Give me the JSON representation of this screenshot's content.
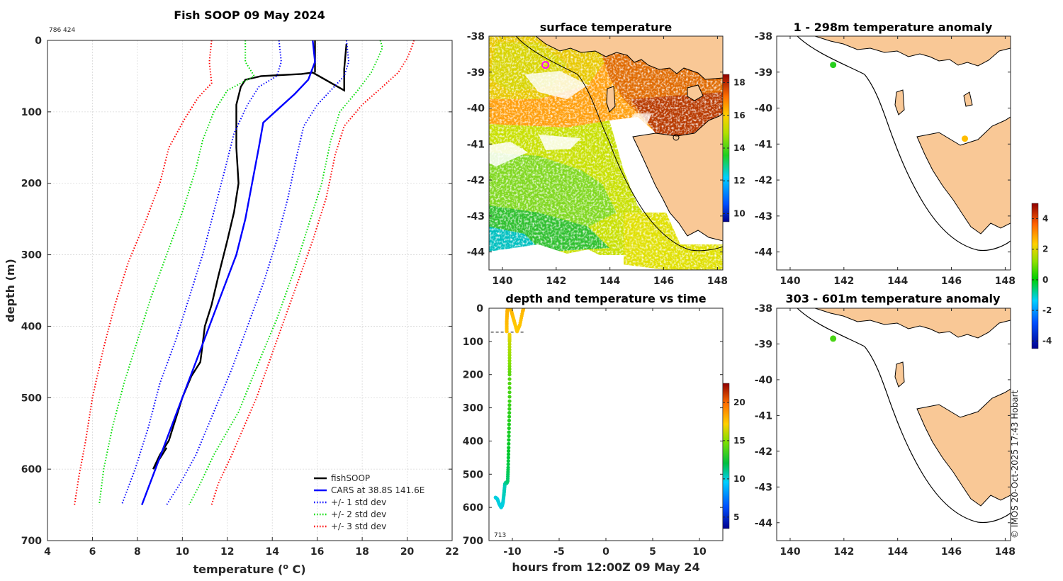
{
  "colors": {
    "land": "#f9c896",
    "coast": "#000000",
    "fish": "#000000",
    "cars": "#0000ff",
    "std1": "#0000ff",
    "std2": "#00dd00",
    "std3": "#ff0000"
  },
  "chart_data": [
    {
      "id": "profile",
      "type": "line",
      "title": "Fish SOOP 09 May 2024",
      "corner_note": "786 424",
      "xlabel": "temperature (",
      "xlabel_sup": "o",
      "xlabel_end": " C)",
      "ylabel": "depth (m)",
      "xlim": [
        4,
        22
      ],
      "ylim": [
        0,
        700
      ],
      "xticks": [
        4,
        6,
        8,
        10,
        12,
        14,
        16,
        18,
        20,
        22
      ],
      "yticks": [
        0,
        100,
        200,
        300,
        400,
        500,
        600,
        700
      ],
      "legend": [
        "fishSOOP",
        "CARS at 38.8S 141.6E",
        "+/- 1 std dev",
        "+/- 2 std dev",
        "+/- 3 std dev"
      ],
      "legend_position": "bottom-right",
      "series": [
        {
          "name": "fishSOOP",
          "color": "#000000",
          "style": "solid",
          "points": [
            [
              17.3,
              5
            ],
            [
              17.2,
              40
            ],
            [
              17.2,
              70
            ],
            [
              15.8,
              45
            ],
            [
              15.3,
              47
            ],
            [
              13.5,
              50
            ],
            [
              12.8,
              55
            ],
            [
              12.6,
              65
            ],
            [
              12.4,
              90
            ],
            [
              12.4,
              150
            ],
            [
              12.5,
              200
            ],
            [
              12.3,
              240
            ],
            [
              12.0,
              280
            ],
            [
              11.6,
              330
            ],
            [
              11.3,
              370
            ],
            [
              11.0,
              400
            ],
            [
              10.8,
              450
            ],
            [
              10.4,
              470
            ],
            [
              10.0,
              500
            ],
            [
              9.8,
              520
            ],
            [
              9.6,
              540
            ],
            [
              9.4,
              560
            ],
            [
              9.0,
              580
            ],
            [
              8.7,
              600
            ],
            [
              8.9,
              590
            ],
            [
              9.3,
              570
            ]
          ]
        },
        {
          "name": "fishSOOP shallow",
          "color": "#000000",
          "style": "solid",
          "points": [
            [
              15.9,
              0
            ],
            [
              15.9,
              30
            ],
            [
              15.9,
              45
            ]
          ]
        },
        {
          "name": "CARS at 38.8S 141.6E",
          "color": "#0000ff",
          "style": "solid",
          "points": [
            [
              15.8,
              0
            ],
            [
              15.9,
              30
            ],
            [
              15.6,
              55
            ],
            [
              15.0,
              75
            ],
            [
              14.3,
              95
            ],
            [
              13.6,
              115
            ],
            [
              13.4,
              150
            ],
            [
              13.1,
              200
            ],
            [
              12.8,
              250
            ],
            [
              12.4,
              300
            ],
            [
              11.8,
              350
            ],
            [
              11.2,
              400
            ],
            [
              10.6,
              450
            ],
            [
              10.0,
              500
            ],
            [
              9.4,
              550
            ],
            [
              8.8,
              600
            ],
            [
              8.2,
              650
            ]
          ]
        },
        {
          "name": "-1 std",
          "color": "#0000ff",
          "style": "dotted",
          "points": [
            [
              14.3,
              0
            ],
            [
              14.4,
              30
            ],
            [
              14.2,
              50
            ],
            [
              13.4,
              65
            ],
            [
              12.9,
              90
            ],
            [
              12.3,
              130
            ],
            [
              11.9,
              180
            ],
            [
              11.4,
              240
            ],
            [
              10.9,
              300
            ],
            [
              10.3,
              360
            ],
            [
              9.7,
              420
            ],
            [
              9.0,
              480
            ],
            [
              8.5,
              540
            ],
            [
              7.9,
              600
            ],
            [
              7.3,
              650
            ]
          ]
        },
        {
          "name": "+1 std",
          "color": "#0000ff",
          "style": "dotted",
          "points": [
            [
              17.3,
              0
            ],
            [
              17.4,
              30
            ],
            [
              17.2,
              50
            ],
            [
              16.6,
              70
            ],
            [
              16.0,
              90
            ],
            [
              15.4,
              120
            ],
            [
              15.1,
              160
            ],
            [
              14.7,
              220
            ],
            [
              14.2,
              280
            ],
            [
              13.6,
              340
            ],
            [
              12.9,
              400
            ],
            [
              12.2,
              460
            ],
            [
              11.4,
              520
            ],
            [
              10.6,
              580
            ],
            [
              9.9,
              620
            ],
            [
              9.3,
              650
            ]
          ]
        },
        {
          "name": "-2 std",
          "color": "#00dd00",
          "style": "dotted",
          "points": [
            [
              12.8,
              0
            ],
            [
              12.8,
              30
            ],
            [
              13.2,
              50
            ],
            [
              12.0,
              70
            ],
            [
              11.4,
              100
            ],
            [
              10.9,
              140
            ],
            [
              10.6,
              180
            ],
            [
              10.0,
              240
            ],
            [
              9.3,
              300
            ],
            [
              8.6,
              360
            ],
            [
              8.0,
              420
            ],
            [
              7.4,
              480
            ],
            [
              6.9,
              540
            ],
            [
              6.5,
              600
            ],
            [
              6.3,
              650
            ]
          ]
        },
        {
          "name": "+2 std",
          "color": "#00dd00",
          "style": "dotted",
          "points": [
            [
              18.8,
              0
            ],
            [
              18.9,
              10
            ],
            [
              18.7,
              25
            ],
            [
              18.4,
              45
            ],
            [
              17.8,
              70
            ],
            [
              17.0,
              100
            ],
            [
              16.6,
              140
            ],
            [
              16.2,
              200
            ],
            [
              15.6,
              260
            ],
            [
              15.0,
              320
            ],
            [
              14.2,
              390
            ],
            [
              13.4,
              450
            ],
            [
              12.5,
              520
            ],
            [
              11.4,
              580
            ],
            [
              10.8,
              620
            ],
            [
              10.3,
              650
            ]
          ]
        },
        {
          "name": "-3 std",
          "color": "#ff0000",
          "style": "dotted",
          "points": [
            [
              11.3,
              0
            ],
            [
              11.2,
              30
            ],
            [
              11.3,
              60
            ],
            [
              10.7,
              80
            ],
            [
              10.1,
              110
            ],
            [
              9.4,
              150
            ],
            [
              9.0,
              200
            ],
            [
              8.4,
              250
            ],
            [
              7.6,
              310
            ],
            [
              7.0,
              370
            ],
            [
              6.5,
              430
            ],
            [
              6.0,
              500
            ],
            [
              5.7,
              560
            ],
            [
              5.4,
              610
            ],
            [
              5.2,
              650
            ]
          ]
        },
        {
          "name": "+3 std",
          "color": "#ff0000",
          "style": "dotted",
          "points": [
            [
              20.3,
              0
            ],
            [
              20.2,
              10
            ],
            [
              20.0,
              25
            ],
            [
              19.6,
              45
            ],
            [
              18.9,
              65
            ],
            [
              18.0,
              90
            ],
            [
              17.2,
              120
            ],
            [
              16.8,
              160
            ],
            [
              16.4,
              220
            ],
            [
              15.8,
              280
            ],
            [
              15.0,
              350
            ],
            [
              14.2,
              420
            ],
            [
              13.3,
              500
            ],
            [
              12.2,
              580
            ],
            [
              11.6,
              620
            ],
            [
              11.3,
              650
            ]
          ]
        }
      ]
    },
    {
      "id": "surface",
      "type": "heatmap",
      "title": "surface temperature",
      "xlim": [
        139.5,
        148.2
      ],
      "ylim": [
        -44.5,
        -38
      ],
      "xticks": [
        140,
        142,
        144,
        146,
        148
      ],
      "yticks": [
        -38,
        -39,
        -40,
        -41,
        -42,
        -43,
        -44
      ],
      "colorbar_ticks": [
        10,
        12,
        14,
        16,
        18
      ],
      "colorbar_range": [
        9.5,
        18.5
      ],
      "station": {
        "lon": 141.6,
        "lat": -38.8,
        "color": "#ff00ff"
      }
    },
    {
      "id": "timeseries",
      "type": "scatter",
      "title": "depth and temperature vs time",
      "xlabel": "hours from 12:00Z 09 May 24",
      "corner_note": "713",
      "xlim": [
        -12.5,
        12.5
      ],
      "ylim": [
        0,
        700
      ],
      "xticks": [
        -10,
        -5,
        0,
        5,
        10
      ],
      "yticks": [
        0,
        100,
        200,
        300,
        400,
        500,
        600,
        700
      ],
      "colorbar_ticks": [
        5,
        10,
        15,
        20
      ],
      "colorbar_range": [
        3.5,
        22.5
      ],
      "segments": [
        {
          "name": "descent",
          "points": [
            [
              -11.8,
              570
            ],
            [
              -11.6,
              575
            ],
            [
              -11.4,
              590
            ],
            [
              -11.2,
              600
            ],
            [
              -11.1,
              595
            ],
            [
              -11.0,
              585
            ],
            [
              -10.9,
              560
            ],
            [
              -10.8,
              530
            ],
            [
              -10.7,
              525
            ],
            [
              -10.6,
              527
            ],
            [
              -10.5,
              520
            ],
            [
              -10.45,
              480
            ],
            [
              -10.4,
              420
            ],
            [
              -10.35,
              350
            ],
            [
              -10.3,
              280
            ],
            [
              -10.3,
              200
            ],
            [
              -10.3,
              150
            ],
            [
              -10.3,
              100
            ],
            [
              -10.3,
              75
            ]
          ],
          "temps": [
            10,
            10,
            10,
            10,
            10,
            10,
            10.5,
            10.5,
            11,
            11,
            11.5,
            12,
            12.5,
            13,
            13.5,
            14,
            15,
            16,
            17
          ]
        },
        {
          "name": "surface",
          "points": [
            [
              -10.6,
              70
            ],
            [
              -10.6,
              40
            ],
            [
              -10.55,
              10
            ],
            [
              -10.5,
              0
            ],
            [
              -10.2,
              0
            ],
            [
              -10.0,
              20
            ],
            [
              -9.8,
              40
            ],
            [
              -9.5,
              70
            ],
            [
              -9.2,
              50
            ],
            [
              -8.9,
              10
            ],
            [
              -8.8,
              0
            ]
          ],
          "temps": [
            17.5,
            17.8,
            18,
            18,
            18,
            17.8,
            17.5,
            17.3,
            17.5,
            17.8,
            18
          ]
        }
      ],
      "dashed_depth": 72,
      "dashed_x": [
        -12.3,
        -8.7
      ]
    },
    {
      "id": "anom_shallow",
      "type": "scatter",
      "title": "1 - 298m temperature anomaly",
      "xlim": [
        139.5,
        148.2
      ],
      "ylim": [
        -44.5,
        -38
      ],
      "xticks": [
        140,
        142,
        144,
        146,
        148
      ],
      "yticks": [
        -38,
        -39,
        -40,
        -41,
        -42,
        -43,
        -44
      ],
      "points": [
        {
          "lon": 141.6,
          "lat": -38.8,
          "anomaly": 0.3
        },
        {
          "lon": 146.5,
          "lat": -40.85,
          "anomaly": 2.6
        }
      ]
    },
    {
      "id": "anom_deep",
      "type": "scatter",
      "title": "303 - 601m temperature anomaly",
      "xlim": [
        139.5,
        148.2
      ],
      "ylim": [
        -44.5,
        -38
      ],
      "xticks": [
        140,
        142,
        144,
        146,
        148
      ],
      "yticks": [
        -38,
        -39,
        -40,
        -41,
        -42,
        -43,
        -44
      ],
      "points": [
        {
          "lon": 141.6,
          "lat": -38.85,
          "anomaly": 0.6
        }
      ],
      "colorbar_ticks": [
        -4,
        -2,
        0,
        2,
        4
      ],
      "colorbar_range": [
        -4.5,
        5
      ]
    }
  ],
  "footer": "© IMOS 20-Oct-2025 17:43 Hobart"
}
